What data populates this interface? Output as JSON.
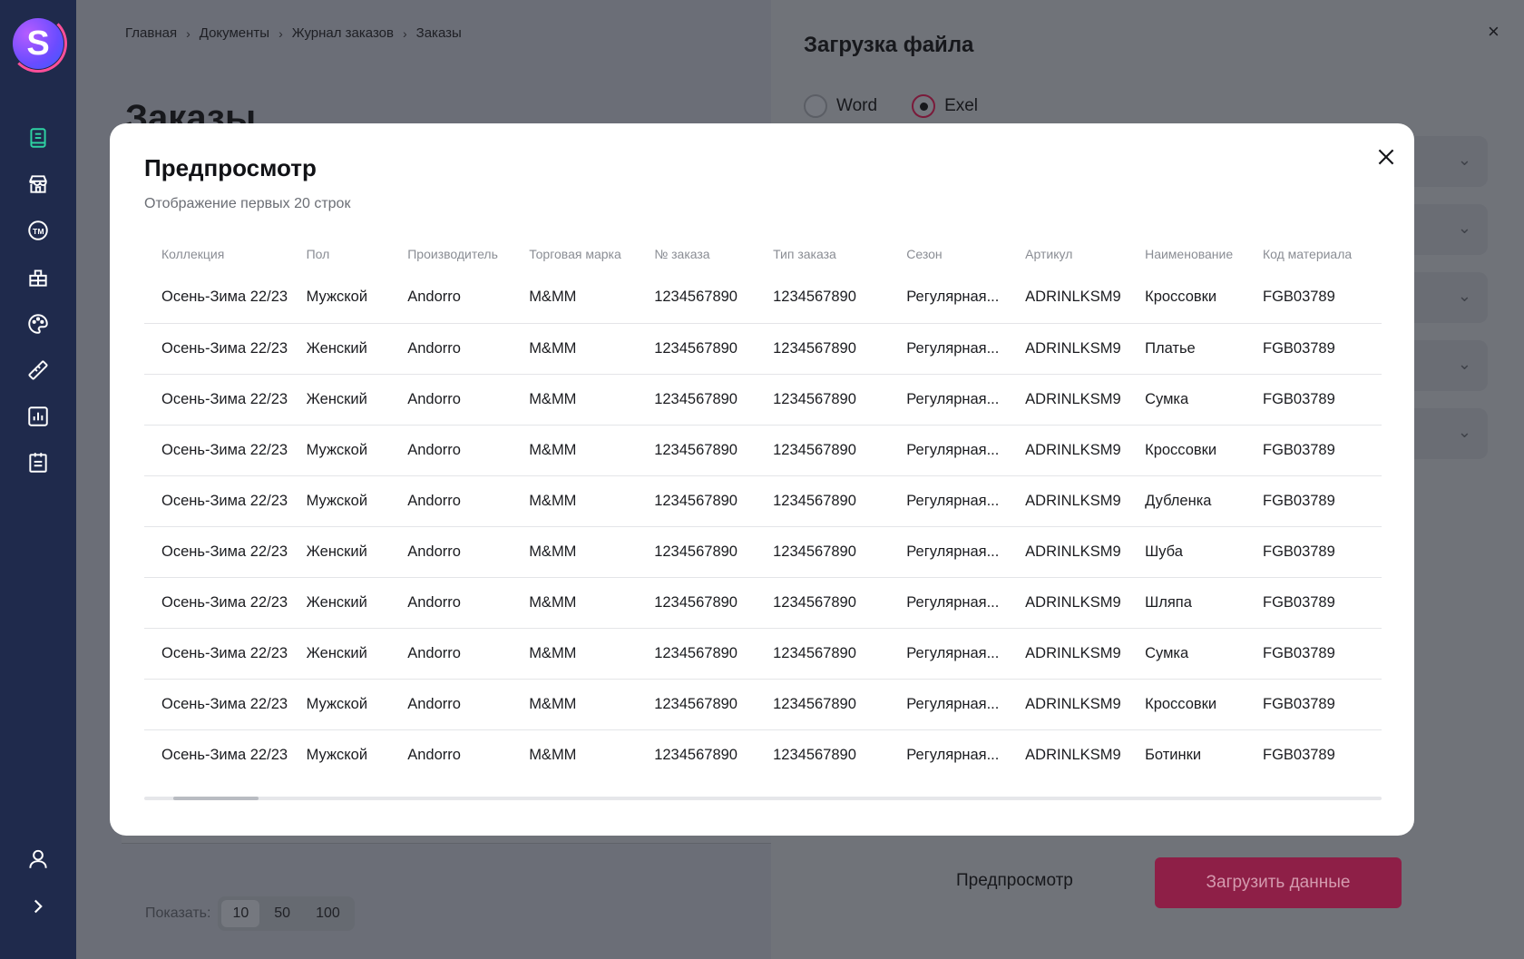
{
  "sidebar": {
    "logo_letter": "S",
    "icons": [
      "book-icon",
      "store-icon",
      "trademark-icon",
      "box-icon",
      "palette-icon",
      "ruler-icon",
      "chart-icon",
      "report-icon"
    ],
    "bottom_icons": [
      "user-icon",
      "expand-icon"
    ],
    "accent": "#2ed3a3"
  },
  "breadcrumb": [
    "Главная",
    "Документы",
    "Журнал заказов",
    "Заказы"
  ],
  "page": {
    "title": "Заказы"
  },
  "pagination": {
    "label": "Показать:",
    "options": [
      "10",
      "50",
      "100"
    ],
    "selected": "10"
  },
  "upload_panel": {
    "title": "Загрузка файла",
    "close": "×",
    "formats": [
      {
        "label": "Word",
        "selected": false
      },
      {
        "label": "Exel",
        "selected": true
      }
    ],
    "preview_button": "Предпросмотр",
    "load_button": "Загрузить данные"
  },
  "modal": {
    "title": "Предпросмотр",
    "subtitle": "Отображение первых 20 строк",
    "columns": [
      "Коллекция",
      "Пол",
      "Производитель",
      "Торговая марка",
      "№ заказа",
      "Тип заказа",
      "Сезон",
      "Артикул",
      "Наименование",
      "Код материала"
    ],
    "rows": [
      [
        "Осень-Зима 22/23",
        "Мужской",
        "Andorro",
        "M&MM",
        "1234567890",
        "1234567890",
        "Регулярная...",
        "ADRINLKSM9",
        "Кроссовки",
        "FGB03789"
      ],
      [
        "Осень-Зима 22/23",
        "Женский",
        "Andorro",
        "M&MM",
        "1234567890",
        "1234567890",
        "Регулярная...",
        "ADRINLKSM9",
        "Платье",
        "FGB03789"
      ],
      [
        "Осень-Зима 22/23",
        "Женский",
        "Andorro",
        "M&MM",
        "1234567890",
        "1234567890",
        "Регулярная...",
        "ADRINLKSM9",
        "Сумка",
        "FGB03789"
      ],
      [
        "Осень-Зима 22/23",
        "Мужской",
        "Andorro",
        "M&MM",
        "1234567890",
        "1234567890",
        "Регулярная...",
        "ADRINLKSM9",
        "Кроссовки",
        "FGB03789"
      ],
      [
        "Осень-Зима 22/23",
        "Мужской",
        "Andorro",
        "M&MM",
        "1234567890",
        "1234567890",
        "Регулярная...",
        "ADRINLKSM9",
        "Дубленка",
        "FGB03789"
      ],
      [
        "Осень-Зима 22/23",
        "Женский",
        "Andorro",
        "M&MM",
        "1234567890",
        "1234567890",
        "Регулярная...",
        "ADRINLKSM9",
        "Шуба",
        "FGB03789"
      ],
      [
        "Осень-Зима 22/23",
        "Женский",
        "Andorro",
        "M&MM",
        "1234567890",
        "1234567890",
        "Регулярная...",
        "ADRINLKSM9",
        "Шляпа",
        "FGB03789"
      ],
      [
        "Осень-Зима 22/23",
        "Женский",
        "Andorro",
        "M&MM",
        "1234567890",
        "1234567890",
        "Регулярная...",
        "ADRINLKSM9",
        "Сумка",
        "FGB03789"
      ],
      [
        "Осень-Зима 22/23",
        "Мужской",
        "Andorro",
        "M&MM",
        "1234567890",
        "1234567890",
        "Регулярная...",
        "ADRINLKSM9",
        "Кроссовки",
        "FGB03789"
      ],
      [
        "Осень-Зима 22/23",
        "Мужской",
        "Andorro",
        "M&MM",
        "1234567890",
        "1234567890",
        "Регулярная...",
        "ADRINLKSM9",
        "Ботинки",
        "FGB03789"
      ]
    ]
  }
}
